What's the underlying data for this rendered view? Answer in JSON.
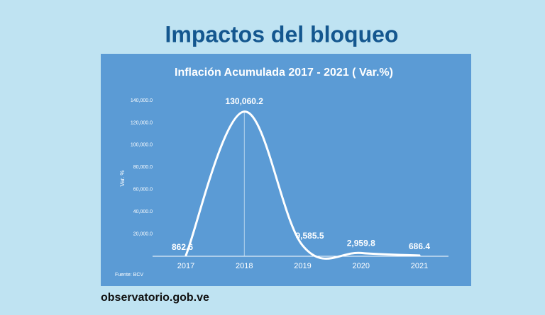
{
  "header": {
    "title": "Impactos del bloqueo",
    "footer": "observatorio.gob.ve"
  },
  "chart_data": {
    "type": "line",
    "title": "Inflación Acumulada 2017 -  2021 ( Var.%)",
    "y_label": "Var. %",
    "source": "Fuente: BCV",
    "categories": [
      "2017",
      "2018",
      "2019",
      "2020",
      "2021"
    ],
    "values": [
      862.6,
      130060.2,
      9585.5,
      2959.8,
      686.4
    ],
    "value_labels": [
      "862.6",
      "130,060.2",
      "9,585.5",
      "2,959.8",
      "686.4"
    ],
    "color": "#ffffff",
    "ylim": [
      0,
      140000
    ],
    "yticks": [
      {
        "value": 20000,
        "label": "20,000.0"
      },
      {
        "value": 40000,
        "label": "40,000.0"
      },
      {
        "value": 60000,
        "label": "60,000.0"
      },
      {
        "value": 80000,
        "label": "80,000.0"
      },
      {
        "value": 100000,
        "label": "100,000.0"
      },
      {
        "value": 120000,
        "label": "120,000.0"
      },
      {
        "value": 140000,
        "label": "140,000.0"
      }
    ],
    "grid": false
  }
}
